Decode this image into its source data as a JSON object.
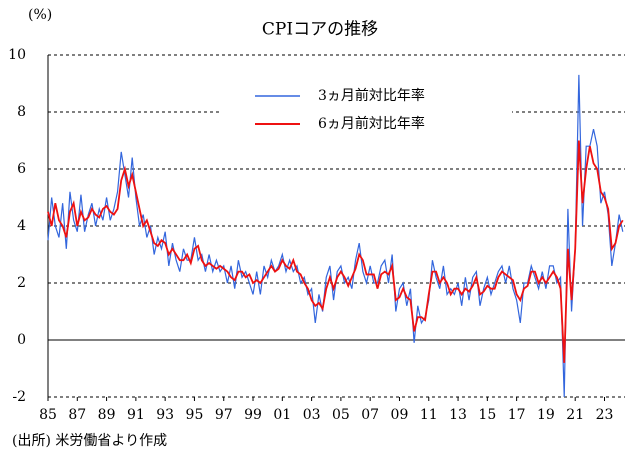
{
  "chart_data": {
    "type": "line",
    "title": "CPIコアの推移",
    "y_unit": "(%)",
    "note": "(出所) 米労働省より作成",
    "x": [
      1985,
      1985.25,
      1985.5,
      1985.75,
      1986,
      1986.25,
      1986.5,
      1986.75,
      1987,
      1987.25,
      1987.5,
      1987.75,
      1988,
      1988.25,
      1988.5,
      1988.75,
      1989,
      1989.25,
      1989.5,
      1989.75,
      1990,
      1990.25,
      1990.5,
      1990.75,
      1991,
      1991.25,
      1991.5,
      1991.75,
      1992,
      1992.25,
      1992.5,
      1992.75,
      1993,
      1993.25,
      1993.5,
      1993.75,
      1994,
      1994.25,
      1994.5,
      1994.75,
      1995,
      1995.25,
      1995.5,
      1995.75,
      1996,
      1996.25,
      1996.5,
      1996.75,
      1997,
      1997.25,
      1997.5,
      1997.75,
      1998,
      1998.25,
      1998.5,
      1998.75,
      1999,
      1999.25,
      1999.5,
      1999.75,
      2000,
      2000.25,
      2000.5,
      2000.75,
      2001,
      2001.25,
      2001.5,
      2001.75,
      2002,
      2002.25,
      2002.5,
      2002.75,
      2003,
      2003.25,
      2003.5,
      2003.75,
      2004,
      2004.25,
      2004.5,
      2004.75,
      2005,
      2005.25,
      2005.5,
      2005.75,
      2006,
      2006.25,
      2006.5,
      2006.75,
      2007,
      2007.25,
      2007.5,
      2007.75,
      2008,
      2008.25,
      2008.5,
      2008.75,
      2009,
      2009.25,
      2009.5,
      2009.75,
      2010,
      2010.25,
      2010.5,
      2010.75,
      2011,
      2011.25,
      2011.5,
      2011.75,
      2012,
      2012.25,
      2012.5,
      2012.75,
      2013,
      2013.25,
      2013.5,
      2013.75,
      2014,
      2014.25,
      2014.5,
      2014.75,
      2015,
      2015.25,
      2015.5,
      2015.75,
      2016,
      2016.25,
      2016.5,
      2016.75,
      2017,
      2017.25,
      2017.5,
      2017.75,
      2018,
      2018.25,
      2018.5,
      2018.75,
      2019,
      2019.25,
      2019.5,
      2019.75,
      2020,
      2020.25,
      2020.5,
      2020.75,
      2021,
      2021.25,
      2021.5,
      2021.75,
      2022,
      2022.25,
      2022.5,
      2022.75,
      2023,
      2023.25,
      2023.5,
      2023.75,
      2024,
      2024.25
    ],
    "series": [
      {
        "name": "3ヵ月前対比年率",
        "color": "#3366dd",
        "values": [
          3.5,
          5.0,
          4.0,
          3.6,
          4.8,
          3.2,
          5.2,
          4.2,
          3.8,
          5.1,
          3.8,
          4.4,
          4.8,
          4.0,
          4.6,
          4.2,
          5.0,
          4.2,
          4.6,
          5.2,
          6.6,
          5.8,
          5.0,
          6.4,
          5.0,
          4.0,
          4.4,
          3.6,
          4.0,
          3.0,
          3.6,
          3.2,
          3.8,
          2.6,
          3.4,
          2.8,
          2.4,
          3.2,
          2.8,
          2.8,
          3.6,
          2.8,
          3.0,
          2.4,
          3.0,
          2.4,
          2.8,
          2.4,
          2.6,
          2.0,
          2.6,
          1.8,
          2.8,
          2.2,
          2.4,
          2.0,
          1.6,
          2.4,
          1.6,
          2.6,
          2.2,
          2.8,
          2.4,
          2.6,
          3.0,
          2.4,
          2.8,
          2.4,
          2.6,
          2.0,
          2.2,
          1.6,
          1.8,
          0.6,
          1.6,
          1.0,
          2.2,
          2.6,
          1.4,
          2.4,
          2.6,
          2.0,
          2.2,
          1.8,
          2.8,
          3.4,
          2.4,
          2.0,
          2.6,
          2.0,
          2.0,
          2.6,
          2.8,
          2.0,
          3.0,
          1.0,
          1.8,
          2.0,
          1.2,
          1.8,
          -0.1,
          1.2,
          0.6,
          0.8,
          1.4,
          2.8,
          2.2,
          1.8,
          2.6,
          1.6,
          1.8,
          1.6,
          2.0,
          1.2,
          2.2,
          1.4,
          2.2,
          2.4,
          1.2,
          1.8,
          2.2,
          1.6,
          2.0,
          2.4,
          2.6,
          2.0,
          2.6,
          1.8,
          1.4,
          0.6,
          2.0,
          2.0,
          2.6,
          2.2,
          1.8,
          2.4,
          1.8,
          2.6,
          2.6,
          2.0,
          2.2,
          -2.0,
          4.6,
          1.0,
          3.2,
          9.3,
          4.0,
          6.8,
          6.8,
          7.4,
          6.8,
          4.8,
          5.2,
          4.4,
          2.6,
          3.4,
          4.4,
          3.8
        ]
      },
      {
        "name": "6ヵ月前対比年率",
        "color": "#ee1111",
        "values": [
          4.5,
          4.0,
          4.8,
          4.2,
          4.0,
          3.6,
          4.5,
          4.8,
          4.0,
          4.5,
          4.2,
          4.3,
          4.6,
          4.4,
          4.3,
          4.6,
          4.7,
          4.5,
          4.4,
          4.6,
          5.6,
          6.0,
          5.4,
          5.8,
          5.2,
          4.6,
          4.0,
          4.2,
          3.8,
          3.4,
          3.3,
          3.5,
          3.4,
          3.0,
          3.2,
          3.0,
          2.8,
          2.8,
          3.0,
          2.7,
          3.2,
          3.3,
          2.8,
          2.6,
          2.7,
          2.6,
          2.5,
          2.6,
          2.5,
          2.4,
          2.2,
          2.1,
          2.4,
          2.4,
          2.2,
          2.3,
          2.0,
          2.1,
          2.0,
          2.2,
          2.4,
          2.6,
          2.4,
          2.5,
          2.8,
          2.6,
          2.5,
          2.8,
          2.4,
          2.3,
          2.0,
          1.8,
          1.4,
          1.2,
          1.3,
          1.1,
          1.8,
          2.2,
          1.8,
          2.2,
          2.4,
          2.2,
          1.9,
          2.2,
          2.5,
          3.0,
          2.8,
          2.3,
          2.3,
          2.3,
          1.8,
          2.3,
          2.4,
          2.3,
          2.6,
          1.4,
          1.5,
          1.8,
          1.5,
          1.4,
          0.3,
          0.8,
          0.8,
          0.7,
          1.6,
          2.4,
          2.4,
          2.0,
          2.2,
          2.0,
          1.6,
          1.8,
          1.8,
          1.6,
          1.8,
          1.7,
          1.9,
          2.2,
          1.6,
          1.7,
          1.9,
          1.8,
          1.8,
          2.2,
          2.4,
          2.3,
          2.2,
          2.1,
          1.6,
          1.4,
          1.8,
          1.9,
          2.4,
          2.4,
          2.0,
          2.2,
          2.0,
          2.2,
          2.4,
          2.2,
          1.8,
          -0.8,
          3.2,
          1.4,
          3.2,
          7.0,
          4.8,
          6.0,
          6.8,
          6.2,
          6.0,
          5.2,
          5.0,
          4.6,
          3.2,
          3.4,
          4.0,
          4.2
        ]
      }
    ],
    "xlim": [
      1985,
      2024.4
    ],
    "xticks": [
      {
        "value": 1985,
        "label": "85"
      },
      {
        "value": 1987,
        "label": "87"
      },
      {
        "value": 1989,
        "label": "89"
      },
      {
        "value": 1991,
        "label": "91"
      },
      {
        "value": 1993,
        "label": "93"
      },
      {
        "value": 1995,
        "label": "95"
      },
      {
        "value": 1997,
        "label": "97"
      },
      {
        "value": 1999,
        "label": "99"
      },
      {
        "value": 2001,
        "label": "01"
      },
      {
        "value": 2003,
        "label": "03"
      },
      {
        "value": 2005,
        "label": "05"
      },
      {
        "value": 2007,
        "label": "07"
      },
      {
        "value": 2009,
        "label": "09"
      },
      {
        "value": 2011,
        "label": "11"
      },
      {
        "value": 2013,
        "label": "13"
      },
      {
        "value": 2015,
        "label": "15"
      },
      {
        "value": 2017,
        "label": "17"
      },
      {
        "value": 2019,
        "label": "19"
      },
      {
        "value": 2021,
        "label": "21"
      },
      {
        "value": 2023,
        "label": "23"
      }
    ],
    "ylim": [
      -2,
      10
    ],
    "yticks": [
      -2,
      0,
      2,
      4,
      6,
      8,
      10
    ],
    "grid": true
  }
}
